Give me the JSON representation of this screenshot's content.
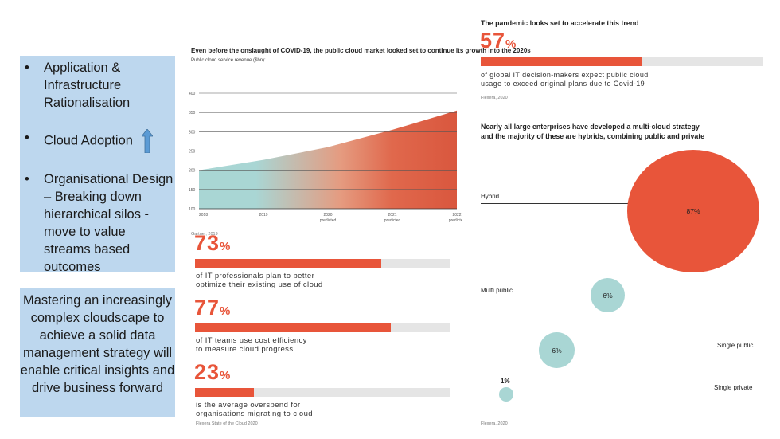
{
  "left_panel": {
    "bullets": [
      "Application & Infrastructure Rationalisation",
      "Cloud Adoption",
      "Organisational Design – Breaking down hierarchical silos - move to value streams based outcomes"
    ],
    "bullet_symbol": "•",
    "arrow_icon": "up-arrow-icon",
    "callout": "Mastering an increasingly complex cloudscape to achieve a solid data management strategy will enable critical insights and drive business forward",
    "box_color": "#bdd7ee"
  },
  "cloud_chart": {
    "title": "Even before the onslaught of COVID-19, the public cloud market looked set to continue its growth into the 2020s",
    "subtitle": "Public cloud service revenue ($bn):",
    "source": "Gartner, 2019",
    "chart_data": {
      "type": "area",
      "title": "Even before the onslaught of COVID-19, the public cloud market looked set to continue its growth into the 2020s",
      "ylabel": "Public cloud service revenue ($bn):",
      "categories": [
        "2018",
        "2019",
        "2020",
        "2021",
        "2022"
      ],
      "sublabels": [
        "",
        "",
        "predicted",
        "predicted",
        "predicted"
      ],
      "values": [
        200,
        227,
        260,
        305,
        355
      ],
      "yticks": [
        100,
        150,
        200,
        250,
        300,
        350,
        400
      ],
      "ylim": [
        100,
        400
      ],
      "grid": true,
      "gradient": [
        "#a9d6d4",
        "#e8553a"
      ]
    }
  },
  "left_stats": [
    {
      "value": "73",
      "unit": "%",
      "fraction": 0.73,
      "desc1": "of IT professionals plan to better",
      "desc2": "optimize their existing use of cloud"
    },
    {
      "value": "77",
      "unit": "%",
      "fraction": 0.77,
      "desc1": "of IT teams use cost efficiency",
      "desc2": "to measure cloud progress"
    },
    {
      "value": "23",
      "unit": "%",
      "fraction": 0.23,
      "desc1": "is the average overspend for",
      "desc2": "organisations migrating to cloud"
    }
  ],
  "left_stats_source": "Flexera State of the Cloud 2020",
  "pandemic": {
    "title": "The pandemic looks set to accelerate this trend",
    "value": "57",
    "unit": "%",
    "fraction": 0.57,
    "desc1": "of global IT decision-makers expect public cloud",
    "desc2": "usage to exceed original plans due to Covid-19",
    "source": "Flexera, 2020"
  },
  "multicloud": {
    "title1": "Nearly all large enterprises have developed a multi-cloud strategy –",
    "title2": "and the majority of these are hybrids, combining public and private",
    "items": [
      {
        "label": "Hybrid",
        "value": "87%"
      },
      {
        "label": "Multi public",
        "value": "6%"
      },
      {
        "label": "Single public",
        "value": "6%"
      },
      {
        "label": "Single private",
        "value": "1%"
      }
    ],
    "source": "Flexera, 2020",
    "colors": {
      "hybrid": "#e8553a",
      "teal": "#a9d6d4"
    }
  }
}
